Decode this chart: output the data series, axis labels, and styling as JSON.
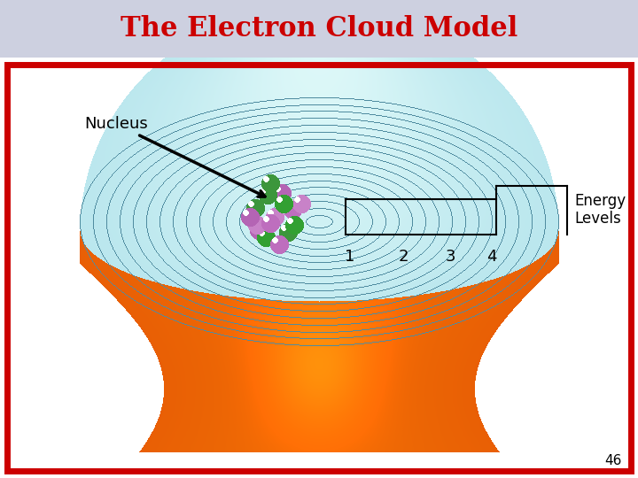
{
  "title": "The Electron Cloud Model",
  "title_color": "#cc0000",
  "title_fontsize": 22,
  "title_bg_color": "#cdd0e0",
  "slide_number": "46",
  "bg_color": "#ffffff",
  "border_color": "#cc0000",
  "nucleus_label": "Nucleus",
  "energy_label": "Energy\nLevels",
  "energy_numbers": [
    "1",
    "2",
    "3",
    "4"
  ],
  "fig_width": 7.2,
  "fig_height": 5.4,
  "dpi": 100
}
